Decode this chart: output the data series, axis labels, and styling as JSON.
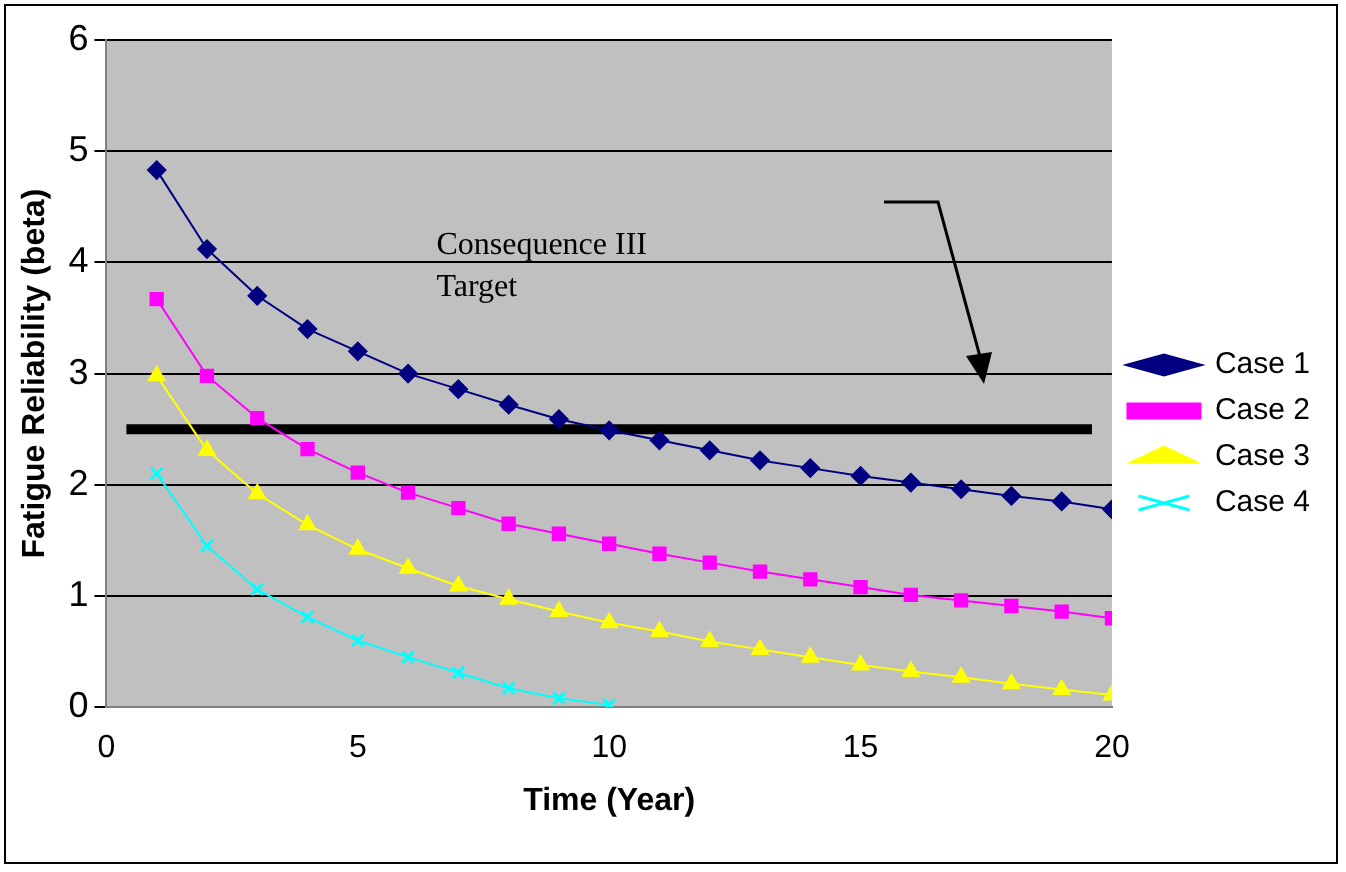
{
  "chart_data": {
    "type": "line",
    "xlabel": "Time (Year)",
    "ylabel": "Fatigue Reliability (beta)",
    "x": [
      1,
      2,
      3,
      4,
      5,
      6,
      7,
      8,
      9,
      10,
      11,
      12,
      13,
      14,
      15,
      16,
      17,
      18,
      19,
      20
    ],
    "xlim": [
      0,
      20
    ],
    "xticks": [
      0,
      5,
      10,
      15,
      20
    ],
    "ylim": [
      0,
      6
    ],
    "yticks": [
      0,
      1,
      2,
      3,
      4,
      5,
      6
    ],
    "grid": "y",
    "legend": "right",
    "series": [
      {
        "name": "Case 1",
        "color": "#000080",
        "marker": "diamond",
        "values": [
          4.83,
          4.12,
          3.7,
          3.4,
          3.2,
          3.0,
          2.86,
          2.72,
          2.59,
          2.49,
          2.4,
          2.31,
          2.22,
          2.15,
          2.08,
          2.02,
          1.96,
          1.9,
          1.85,
          1.78
        ]
      },
      {
        "name": "Case 2",
        "color": "#ff00ff",
        "marker": "square",
        "values": [
          3.67,
          2.98,
          2.6,
          2.32,
          2.11,
          1.93,
          1.79,
          1.65,
          1.56,
          1.47,
          1.38,
          1.3,
          1.22,
          1.15,
          1.08,
          1.01,
          0.96,
          0.91,
          0.86,
          0.8
        ]
      },
      {
        "name": "Case 3",
        "color": "#ffff00",
        "marker": "triangle",
        "values": [
          2.98,
          2.31,
          1.92,
          1.64,
          1.42,
          1.25,
          1.09,
          0.97,
          0.86,
          0.76,
          0.68,
          0.59,
          0.52,
          0.45,
          0.38,
          0.32,
          0.27,
          0.21,
          0.16,
          0.11
        ]
      },
      {
        "name": "Case 4",
        "color": "#00ffff",
        "marker": "cross",
        "values": [
          2.1,
          1.45,
          1.06,
          0.81,
          0.6,
          0.45,
          0.31,
          0.17,
          0.08,
          0.02,
          null,
          null,
          null,
          null,
          null,
          null,
          null,
          null,
          null,
          null
        ]
      }
    ],
    "annotations": [
      "Consequence III Target"
    ],
    "ref_lines": [
      {
        "axis": "y",
        "value": 2.5,
        "color": "#000000"
      }
    ]
  }
}
